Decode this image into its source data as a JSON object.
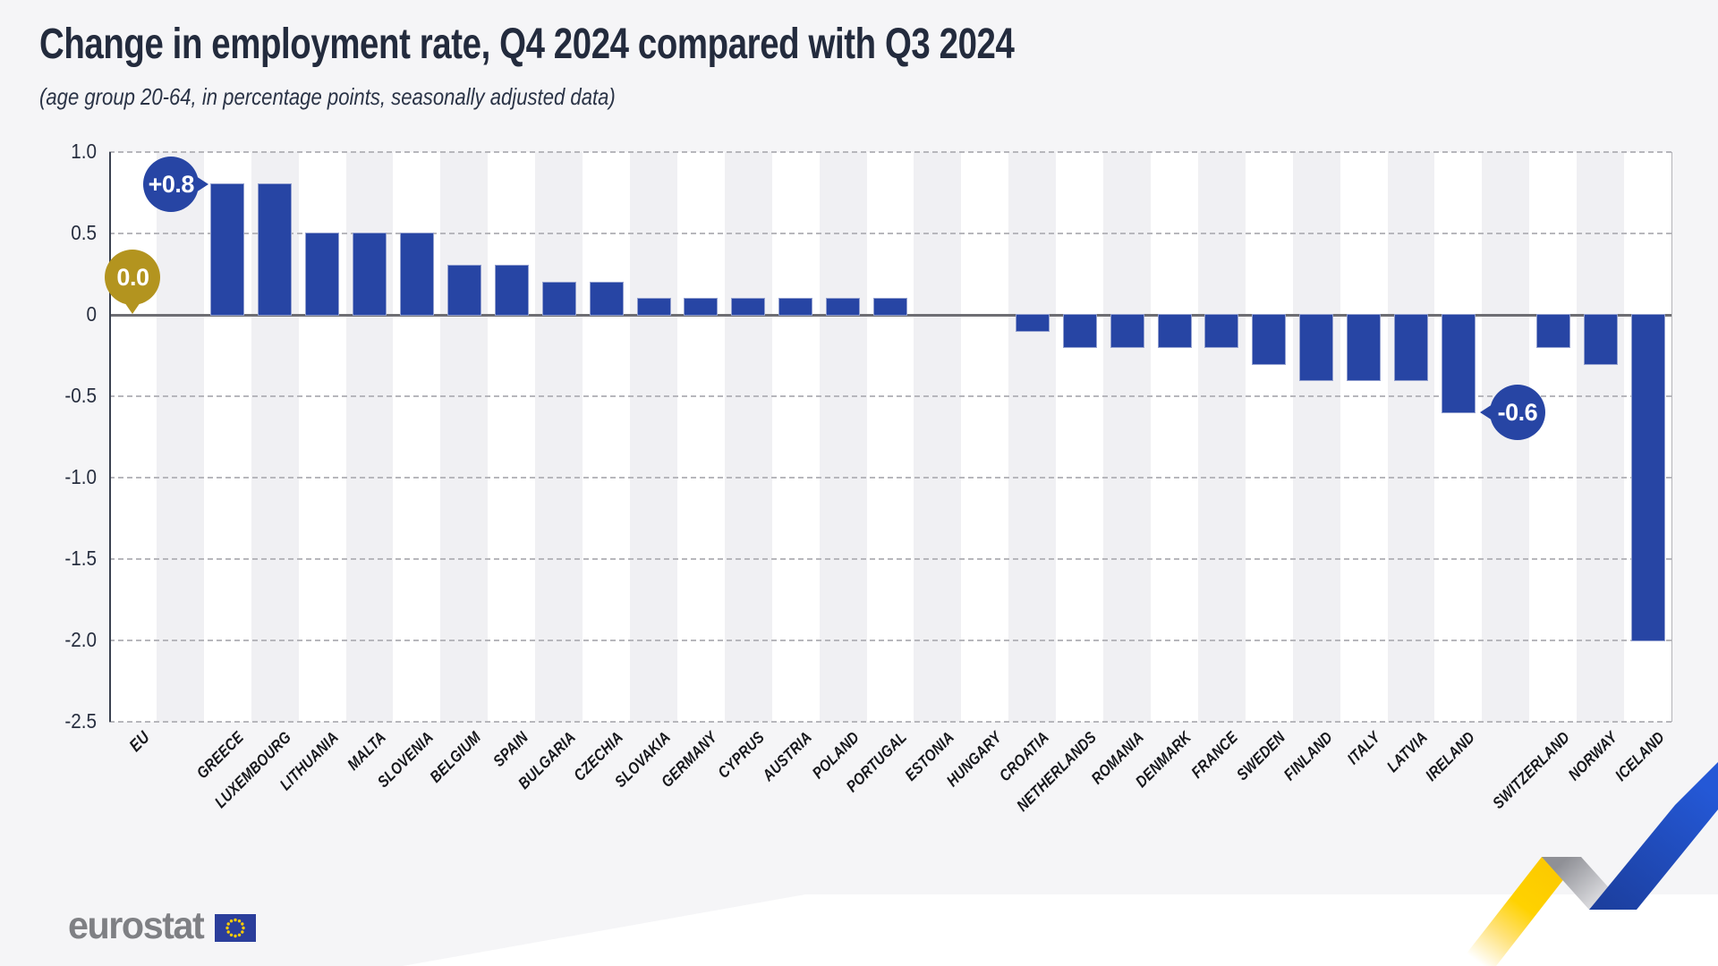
{
  "title": "Change in employment rate, Q4 2024 compared with Q3 2024",
  "subtitle": "(age group 20-64, in percentage points, seasonally adjusted data)",
  "footer": {
    "logo_text": "eurostat"
  },
  "colors": {
    "bar_blue": "#2745a4",
    "callout_blue": "#2745a4",
    "callout_gold": "#b3941f",
    "band_gray": "#f0f0f3",
    "page_bg": "#f5f5f7",
    "deco_yellow": "#ffd200",
    "deco_blue": "#2151c7",
    "eu_flag_blue": "#2b3e9b",
    "eu_flag_stars": "#ffcc00"
  },
  "chart_data": {
    "type": "bar",
    "title": "Change in employment rate, Q4 2024 compared with Q3 2024",
    "subtitle": "(age group 20-64, in percentage points, seasonally adjusted data)",
    "unit": "percentage points",
    "categories": [
      "EU",
      "GREECE",
      "LUXEMBOURG",
      "LITHUANIA",
      "MALTA",
      "SLOVENIA",
      "BELGIUM",
      "SPAIN",
      "BULGARIA",
      "CZECHIA",
      "SLOVAKIA",
      "GERMANY",
      "CYPRUS",
      "AUSTRIA",
      "POLAND",
      "PORTUGAL",
      "ESTONIA",
      "HUNGARY",
      "CROATIA",
      "NETHERLANDS",
      "ROMANIA",
      "DENMARK",
      "FRANCE",
      "SWEDEN",
      "FINLAND",
      "ITALY",
      "LATVIA",
      "IRELAND",
      "SWITZERLAND",
      "NORWAY",
      "ICELAND"
    ],
    "values": [
      0.0,
      0.8,
      0.8,
      0.5,
      0.5,
      0.5,
      0.3,
      0.3,
      0.2,
      0.2,
      0.1,
      0.1,
      0.1,
      0.1,
      0.1,
      0.1,
      0.0,
      0.0,
      -0.1,
      -0.2,
      -0.2,
      -0.2,
      -0.2,
      -0.3,
      -0.4,
      -0.4,
      -0.4,
      -0.6,
      -0.2,
      -0.3,
      -2.0
    ],
    "gap_after_indices": [
      0,
      27
    ],
    "ylim": [
      -2.5,
      1.0
    ],
    "yticks": [
      1.0,
      0.5,
      0,
      -0.5,
      -1.0,
      -1.5,
      -2.0,
      -2.5
    ],
    "grid": "horizontal-dashed",
    "legend": "none",
    "annotations": [
      {
        "label": "+0.8",
        "target": "GREECE",
        "pointer": "right",
        "color": "#2745a4"
      },
      {
        "label": "0.0",
        "target": "EU",
        "pointer": "down",
        "color": "#b3941f"
      },
      {
        "label": "-0.6",
        "target": "IRELAND",
        "pointer": "left",
        "color": "#2745a4"
      }
    ]
  }
}
